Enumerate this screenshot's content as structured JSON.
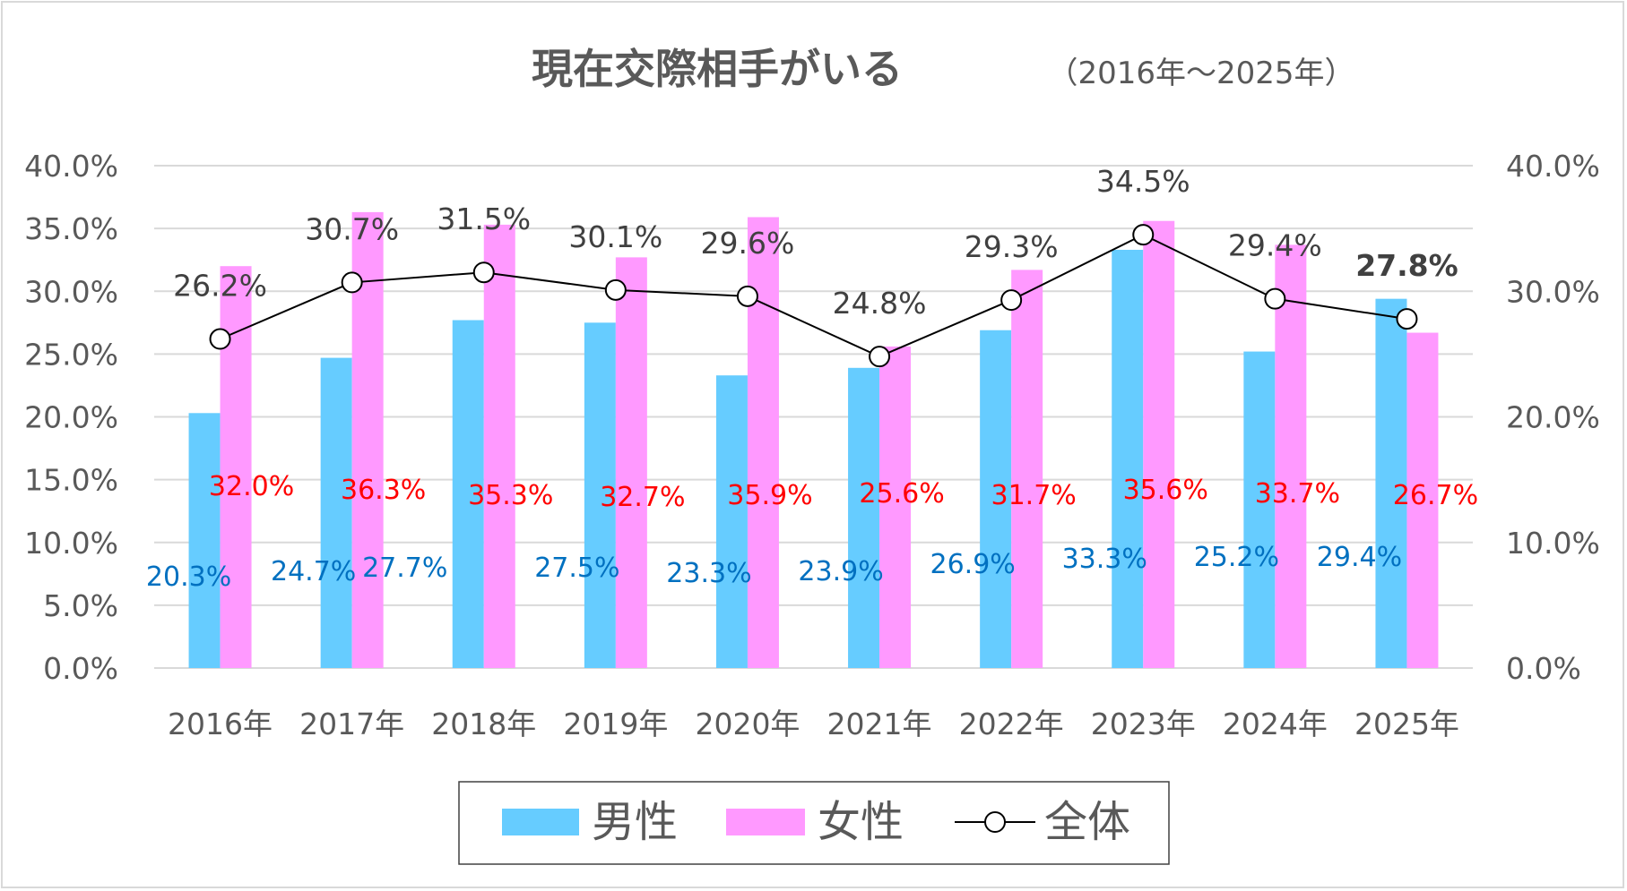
{
  "chart_data": {
    "type": "bar",
    "title": "現在交際相手がいる",
    "subtitle": "（2016年～2025年）",
    "categories": [
      "2016年",
      "2017年",
      "2018年",
      "2019年",
      "2020年",
      "2021年",
      "2022年",
      "2023年",
      "2024年",
      "2025年"
    ],
    "series": [
      {
        "name": "男性",
        "kind": "bar",
        "color": "#66CCFF",
        "label_color": "#0070C0",
        "values": [
          20.3,
          24.7,
          27.7,
          27.5,
          23.3,
          23.9,
          26.9,
          33.3,
          25.2,
          29.4
        ],
        "labels": [
          "20.3%",
          "24.7%",
          "27.7%",
          "27.5%",
          "23.3%",
          "23.9%",
          "26.9%",
          "33.3%",
          "25.2%",
          "29.4%"
        ]
      },
      {
        "name": "女性",
        "kind": "bar",
        "color": "#FF99FF",
        "label_color": "#FF0000",
        "values": [
          32.0,
          36.3,
          35.3,
          32.7,
          35.9,
          25.6,
          31.7,
          35.6,
          33.7,
          26.7
        ],
        "labels": [
          "32.0%",
          "36.3%",
          "35.3%",
          "32.7%",
          "35.9%",
          "25.6%",
          "31.7%",
          "35.6%",
          "33.7%",
          "26.7%"
        ]
      },
      {
        "name": "全体",
        "kind": "line",
        "color": "#000000",
        "label_color": "#404040",
        "values": [
          26.2,
          30.7,
          31.5,
          30.1,
          29.6,
          24.8,
          29.3,
          34.5,
          29.4,
          27.8
        ],
        "labels": [
          "26.2%",
          "30.7%",
          "31.5%",
          "30.1%",
          "29.6%",
          "24.8%",
          "29.3%",
          "34.5%",
          "29.4%",
          "27.8%"
        ]
      }
    ],
    "ylim": [
      0,
      40
    ],
    "yticks": [
      0,
      5,
      10,
      15,
      20,
      25,
      30,
      35,
      40
    ],
    "ytick_labels": [
      "0.0%",
      "5.0%",
      "10.0%",
      "15.0%",
      "20.0%",
      "25.0%",
      "30.0%",
      "35.0%",
      "40.0%"
    ],
    "y2ticks": [
      0,
      10,
      20,
      30,
      40
    ],
    "y2tick_labels": [
      "0.0%",
      "10.0%",
      "20.0%",
      "30.0%",
      "40.0%"
    ],
    "grid": true,
    "legend_position": "bottom",
    "gridline_color": "#d9d9d9"
  }
}
